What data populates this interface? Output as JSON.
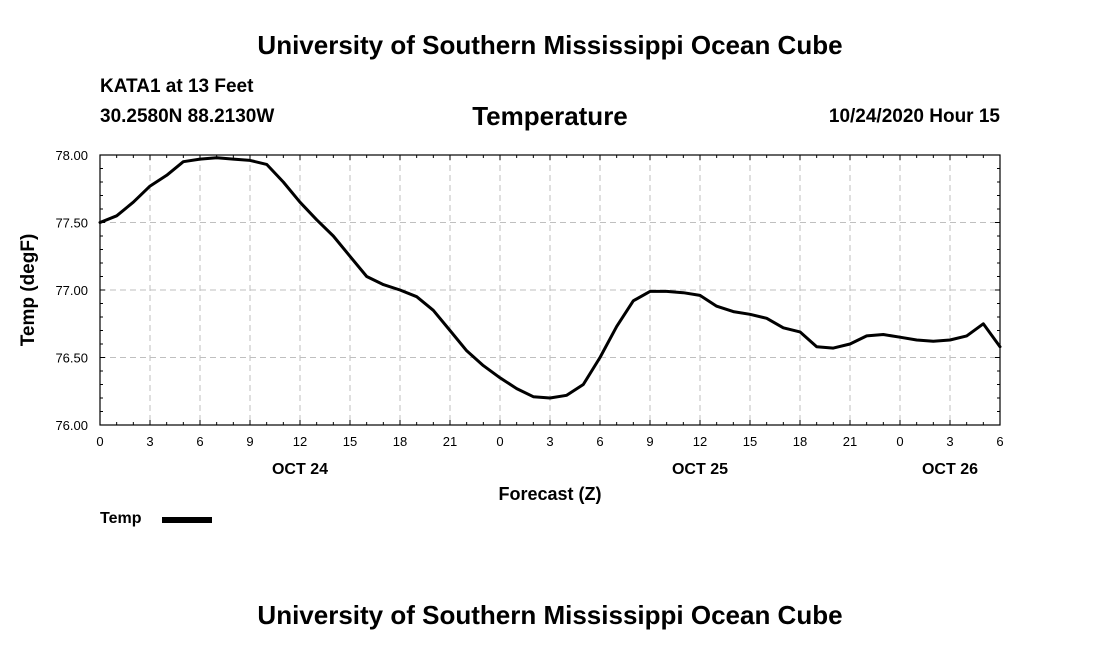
{
  "header": {
    "title": "University of Southern Mississippi Ocean Cube",
    "station": "KATA1 at 13 Feet",
    "coords": "30.2580N 88.2130W",
    "chart_title": "Temperature",
    "datetime": "10/24/2020 Hour 15"
  },
  "footer": {
    "title": "University of Southern Mississippi Ocean Cube"
  },
  "legend": {
    "label": "Temp"
  },
  "chart_data": {
    "type": "line",
    "title": "Temperature",
    "xlabel": "Forecast (Z)",
    "ylabel": "Temp (degF)",
    "xlim": [
      0,
      54
    ],
    "ylim": [
      76.0,
      78.0
    ],
    "x_ticks": [
      0,
      3,
      6,
      9,
      12,
      15,
      18,
      21,
      24,
      27,
      30,
      33,
      36,
      39,
      42,
      45,
      48,
      51,
      54
    ],
    "x_tick_labels": [
      "0",
      "3",
      "6",
      "9",
      "12",
      "15",
      "18",
      "21",
      "0",
      "3",
      "6",
      "9",
      "12",
      "15",
      "18",
      "21",
      "0",
      "3",
      "6"
    ],
    "y_ticks": [
      76.0,
      76.5,
      77.0,
      77.5,
      78.0
    ],
    "y_tick_labels": [
      "76.00",
      "76.50",
      "77.00",
      "77.50",
      "78.00"
    ],
    "date_labels": [
      {
        "x": 12,
        "label": "OCT 24"
      },
      {
        "x": 36,
        "label": "OCT 25"
      },
      {
        "x": 51,
        "label": "OCT 26"
      }
    ],
    "grid": true,
    "colors": {
      "line": "#000000",
      "grid": "#bfbfbf"
    },
    "series": [
      {
        "name": "Temp",
        "x": [
          0,
          1,
          2,
          3,
          4,
          5,
          6,
          7,
          8,
          9,
          10,
          11,
          12,
          13,
          14,
          15,
          16,
          17,
          18,
          19,
          20,
          21,
          22,
          23,
          24,
          25,
          26,
          27,
          28,
          29,
          30,
          31,
          32,
          33,
          34,
          35,
          36,
          37,
          38,
          39,
          40,
          41,
          42,
          43,
          44,
          45,
          46,
          47,
          48,
          49,
          50,
          51,
          52,
          53,
          54
        ],
        "y": [
          77.5,
          77.55,
          77.65,
          77.77,
          77.85,
          77.95,
          77.97,
          77.98,
          77.97,
          77.96,
          77.93,
          77.8,
          77.65,
          77.52,
          77.4,
          77.25,
          77.1,
          77.04,
          77.0,
          76.95,
          76.85,
          76.7,
          76.55,
          76.44,
          76.35,
          76.27,
          76.21,
          76.2,
          76.22,
          76.3,
          76.5,
          76.73,
          76.92,
          76.99,
          76.99,
          76.98,
          76.96,
          76.88,
          76.84,
          76.82,
          76.79,
          76.72,
          76.69,
          76.58,
          76.57,
          76.6,
          76.66,
          76.67,
          76.65,
          76.63,
          76.62,
          76.63,
          76.66,
          76.75,
          76.58
        ]
      }
    ]
  }
}
